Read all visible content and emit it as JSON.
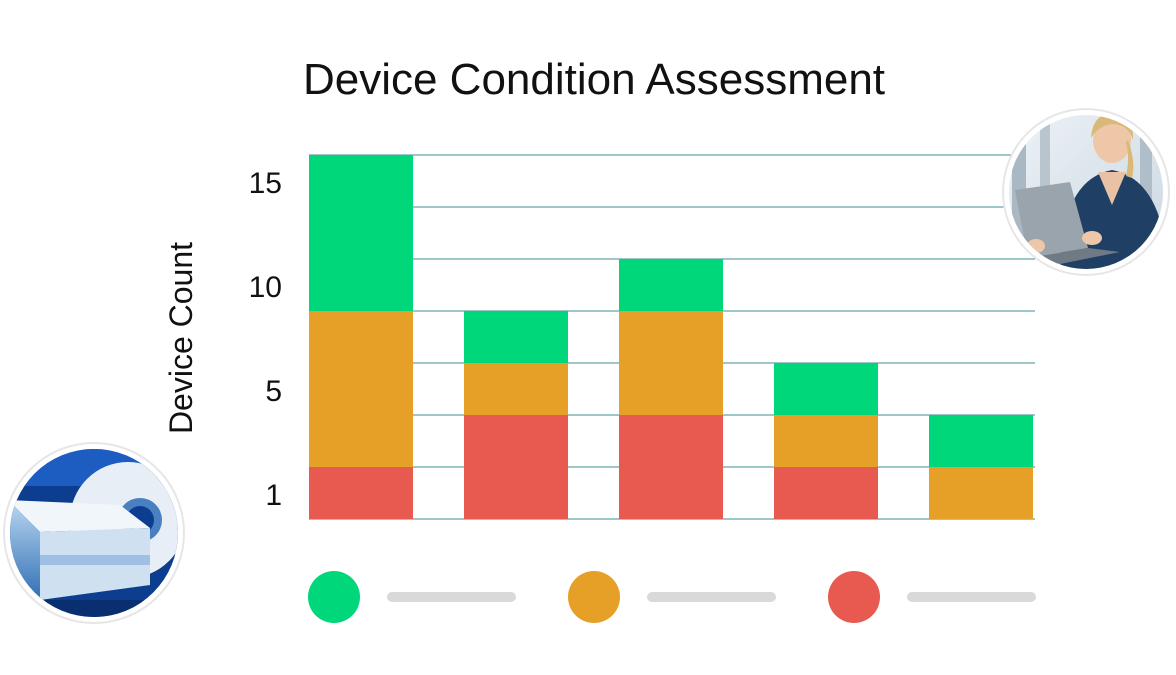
{
  "chart_data": {
    "type": "bar",
    "stacked": true,
    "title": "Device Condition Assessment",
    "xlabel": "",
    "ylabel": "Device Count",
    "yticks": [
      1,
      5,
      10,
      15
    ],
    "ylim": [
      0,
      14
    ],
    "grid": true,
    "legend_position": "bottom",
    "categories": [
      "",
      "",
      "",
      "",
      ""
    ],
    "series": [
      {
        "color": "#e85a4f",
        "values": [
          2,
          4,
          4,
          2,
          0
        ]
      },
      {
        "color": "#e6a027",
        "values": [
          6,
          2,
          4,
          2,
          2
        ]
      },
      {
        "color": "#00d67a",
        "values": [
          6,
          2,
          2,
          2,
          2
        ]
      }
    ],
    "legend": [
      {
        "color": "#00d67a"
      },
      {
        "color": "#e6a027"
      },
      {
        "color": "#e85a4f"
      }
    ]
  },
  "icons": {
    "top_right": "nurse-with-laptop-photo",
    "bottom_left": "mri-scanner-photo"
  }
}
